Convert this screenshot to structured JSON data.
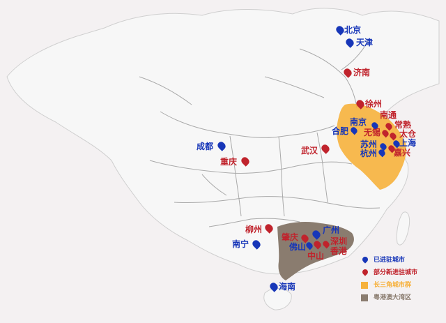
{
  "colors": {
    "background": "#f4f1f2",
    "land": "#f7f7f7",
    "border": "#cfcfcf",
    "province_border": "#a9a9a9",
    "existing_city": "#1736b8",
    "new_city": "#c0232c",
    "yangtze_delta": "#f6b13c",
    "greater_bay": "#8a7c6f"
  },
  "cities": {
    "beijing": {
      "name": "北京",
      "status": "existing"
    },
    "tianjin": {
      "name": "天津",
      "status": "existing"
    },
    "jinan": {
      "name": "济南",
      "status": "new"
    },
    "xuzhou": {
      "name": "徐州",
      "status": "new"
    },
    "nantong": {
      "name": "南通",
      "status": "new"
    },
    "nanjing": {
      "name": "南京",
      "status": "existing"
    },
    "changshu": {
      "name": "常熟",
      "status": "new"
    },
    "wuxi": {
      "name": "无锡",
      "status": "new"
    },
    "taicang": {
      "name": "太仓",
      "status": "new"
    },
    "hefei": {
      "name": "合肥",
      "status": "existing"
    },
    "shanghai": {
      "name": "上海",
      "status": "existing"
    },
    "suzhou": {
      "name": "苏州",
      "status": "existing"
    },
    "hangzhou": {
      "name": "杭州",
      "status": "existing"
    },
    "jiaxing": {
      "name": "嘉兴",
      "status": "new"
    },
    "chengdu": {
      "name": "成都",
      "status": "existing"
    },
    "wuhan": {
      "name": "武汉",
      "status": "new"
    },
    "chongqing": {
      "name": "重庆",
      "status": "new"
    },
    "liuzhou": {
      "name": "柳州",
      "status": "new"
    },
    "guangzhou": {
      "name": "广州",
      "status": "existing"
    },
    "zhaoqing": {
      "name": "肇庆",
      "status": "new"
    },
    "shenzhen": {
      "name": "深圳",
      "status": "new"
    },
    "foshan": {
      "name": "佛山",
      "status": "existing"
    },
    "hongkong": {
      "name": "香港",
      "status": "new"
    },
    "zhongshan": {
      "name": "中山",
      "status": "new"
    },
    "nanning": {
      "name": "南宁",
      "status": "existing"
    },
    "haikou": {
      "name": "海南",
      "status": "existing"
    }
  },
  "legend": {
    "existing": "已进驻城市",
    "new": "部分新进驻城市",
    "yangtze": "长三角城市群",
    "bay": "粤港澳大湾区"
  }
}
